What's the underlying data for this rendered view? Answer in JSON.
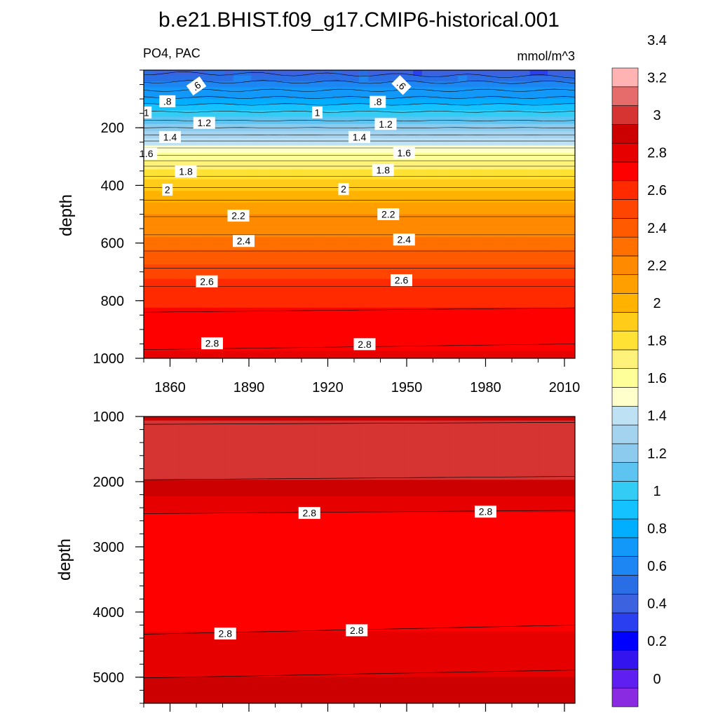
{
  "chart_data": {
    "type": "contour",
    "title": "b.e21.BHIST.f09_g17.CMIP6-historical.001",
    "left_string": "PO4, PAC",
    "right_string": "mmol/m^3",
    "colorbar": {
      "labels": [
        "0",
        "0.2",
        "0.4",
        "0.6",
        "0.8",
        "1",
        "1.2",
        "1.4",
        "1.6",
        "1.8",
        "2",
        "2.2",
        "2.4",
        "2.6",
        "2.8",
        "3",
        "3.2",
        "3.4"
      ],
      "colors": [
        "#8a2be2",
        "#5f1ff0",
        "#3314ef",
        "#0000ff",
        "#2a40f0",
        "#3c62e0",
        "#2a6ee6",
        "#1e86f2",
        "#1298f8",
        "#00aeff",
        "#14c2ff",
        "#33ccf5",
        "#5dc4f2",
        "#8ccbed",
        "#a4d3ef",
        "#bee1f4",
        "#ffffcc",
        "#ffff99",
        "#fff27a",
        "#ffe233",
        "#ffcc1a",
        "#ffb300",
        "#ffa000",
        "#ff8a00",
        "#ff7000",
        "#ff5a00",
        "#ff4500",
        "#ff2a00",
        "#ff0000",
        "#e60000",
        "#cc0000",
        "#d63333",
        "#e66c6c",
        "#ffb3b3"
      ],
      "bin_start": -0.1,
      "bin_width": 0.1,
      "bin_top": 3.6
    },
    "panels": [
      {
        "name": "upper-ocean",
        "ylabel": "depth",
        "y_range": [
          0,
          1000
        ],
        "y_ticks": [
          200,
          400,
          600,
          800,
          1000
        ],
        "y_minor_step": 50,
        "x_range": [
          1850,
          2014
        ],
        "x_ticks": [
          1860,
          1890,
          1920,
          1950,
          1980,
          2010
        ],
        "x_minor_step": 10,
        "x_tick_labels": true,
        "depths": [
          10,
          30,
          50,
          70,
          90,
          110,
          130,
          150,
          175,
          200,
          225,
          250,
          275,
          300,
          330,
          360,
          400,
          440,
          480,
          520,
          560,
          600,
          650,
          700,
          750,
          800,
          850,
          900,
          950,
          1000
        ],
        "values_start": [
          0.5,
          0.57,
          0.63,
          0.7,
          0.78,
          0.86,
          0.95,
          1.02,
          1.1,
          1.2,
          1.3,
          1.42,
          1.52,
          1.62,
          1.79,
          1.88,
          1.98,
          2.08,
          2.15,
          2.22,
          2.28,
          2.35,
          2.44,
          2.52,
          2.6,
          2.66,
          2.71,
          2.74,
          2.78,
          2.83
        ],
        "values_end": [
          0.42,
          0.55,
          0.63,
          0.7,
          0.78,
          0.86,
          0.95,
          1.02,
          1.1,
          1.2,
          1.3,
          1.42,
          1.52,
          1.62,
          1.79,
          1.88,
          1.98,
          2.08,
          2.15,
          2.22,
          2.28,
          2.35,
          2.44,
          2.52,
          2.6,
          2.67,
          2.73,
          2.77,
          2.8,
          2.86
        ],
        "contour_labels": [
          {
            "text": ".6",
            "x": 1870,
            "y": 55,
            "rot": -35
          },
          {
            "text": ".6",
            "x": 1948,
            "y": 52,
            "rot": 45
          },
          {
            "text": ".8",
            "x": 1859,
            "y": 108
          },
          {
            "text": ".8",
            "x": 1939,
            "y": 110
          },
          {
            "text": "1",
            "x": 1851,
            "y": 147
          },
          {
            "text": "1",
            "x": 1916,
            "y": 147
          },
          {
            "text": "1.2",
            "x": 1873,
            "y": 183
          },
          {
            "text": "1.2",
            "x": 1942,
            "y": 187
          },
          {
            "text": "1.4",
            "x": 1860,
            "y": 232
          },
          {
            "text": "1.4",
            "x": 1932,
            "y": 232
          },
          {
            "text": "1.6",
            "x": 1851,
            "y": 290
          },
          {
            "text": "1.6",
            "x": 1949,
            "y": 287
          },
          {
            "text": "1.8",
            "x": 1866,
            "y": 352
          },
          {
            "text": "1.8",
            "x": 1941,
            "y": 347
          },
          {
            "text": "2",
            "x": 1859,
            "y": 415
          },
          {
            "text": "2",
            "x": 1926,
            "y": 413
          },
          {
            "text": "2.2",
            "x": 1886,
            "y": 505
          },
          {
            "text": "2.2",
            "x": 1943,
            "y": 500
          },
          {
            "text": "2.4",
            "x": 1888,
            "y": 593
          },
          {
            "text": "2.4",
            "x": 1949,
            "y": 588
          },
          {
            "text": "2.6",
            "x": 1874,
            "y": 733
          },
          {
            "text": "2.6",
            "x": 1948,
            "y": 729
          },
          {
            "text": "2.8",
            "x": 1876,
            "y": 948
          },
          {
            "text": "2.8",
            "x": 1934,
            "y": 951
          }
        ]
      },
      {
        "name": "deep-ocean",
        "ylabel": "depth",
        "y_range": [
          1000,
          5400
        ],
        "y_ticks": [
          1000,
          2000,
          3000,
          4000,
          5000
        ],
        "y_minor_step": 200,
        "x_range": [
          1850,
          2014
        ],
        "x_ticks": [
          1860,
          1890,
          1920,
          1950,
          1980,
          2010
        ],
        "x_minor_step": 10,
        "x_tick_labels": false,
        "depths": [
          1000,
          1130,
          1900,
          2050,
          2400,
          2550,
          4200,
          4400,
          4900,
          5100,
          5400
        ],
        "values_start": [
          2.95,
          3.05,
          3.05,
          2.95,
          2.85,
          2.75,
          2.75,
          2.85,
          2.85,
          2.95,
          2.95
        ],
        "values_end": [
          2.95,
          3.05,
          3.05,
          2.95,
          2.85,
          2.75,
          2.75,
          2.85,
          2.85,
          2.95,
          2.95
        ],
        "contour_start": [
          1120,
          1970,
          2490,
          4340,
          5010
        ],
        "contour_end": [
          1090,
          1920,
          2440,
          4200,
          4890
        ],
        "contour_labels": [
          {
            "text": "2.8",
            "x": 1913,
            "y": 2480
          },
          {
            "text": "2.8",
            "x": 1980,
            "y": 2460
          },
          {
            "text": "2.8",
            "x": 1881,
            "y": 4330
          },
          {
            "text": "2.8",
            "x": 1931,
            "y": 4280
          }
        ]
      }
    ]
  }
}
